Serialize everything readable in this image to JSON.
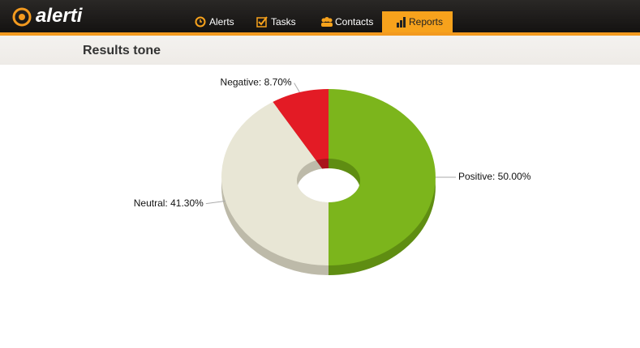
{
  "header": {
    "logo": "alerti",
    "nav": [
      "Alerts",
      "Tasks",
      "Contacts",
      "Reports"
    ],
    "active": 3
  },
  "section": {
    "title": "Results tone"
  },
  "chart_data": {
    "type": "pie",
    "donut": true,
    "values": [
      50,
      41.3,
      8.7
    ],
    "value_labels": [
      "Positive: 50.00%",
      "Neutral: 41.30%",
      "Negative: 8.70%"
    ],
    "colors": [
      "#7cb51c",
      "#e8e6d5",
      "#e31b25"
    ],
    "side_colors": [
      "#5f8d12",
      "#bdbaa9",
      "#a9141b"
    ]
  }
}
